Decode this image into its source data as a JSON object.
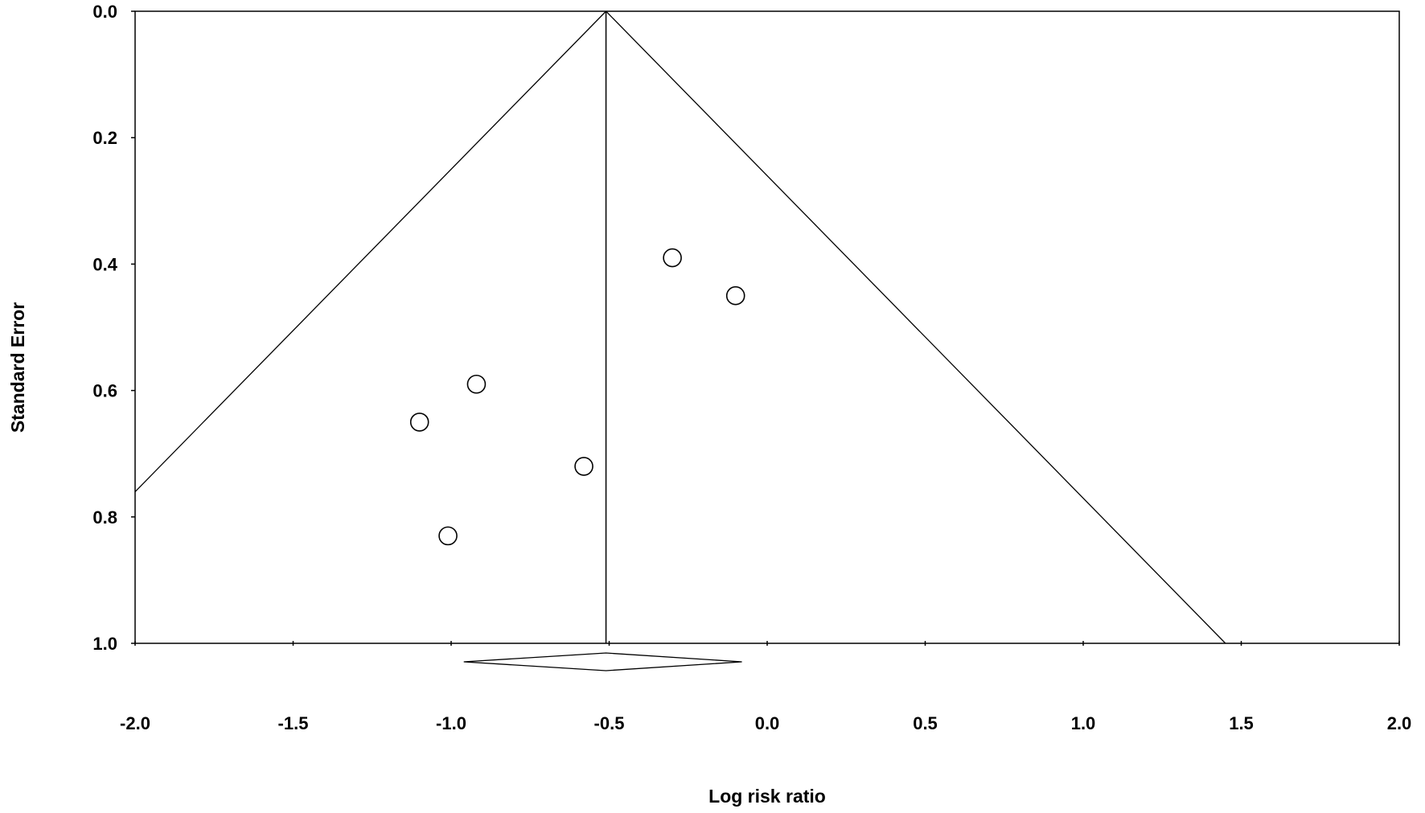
{
  "chart_data": {
    "type": "scatter",
    "subtype": "funnel-plot",
    "title": "",
    "xlabel": "Log risk ratio",
    "ylabel": "Standard Error",
    "xlim": [
      -2.0,
      2.0
    ],
    "ylim": [
      0.0,
      1.0
    ],
    "y_inverted": true,
    "x_ticks": [
      "-2.0",
      "-1.5",
      "-1.0",
      "-0.5",
      "0.0",
      "0.5",
      "1.0",
      "1.5",
      "2.0"
    ],
    "y_ticks": [
      "0.0",
      "0.2",
      "0.4",
      "0.6",
      "0.8",
      "1.0"
    ],
    "grid": false,
    "legend": "none",
    "summary_estimate": -0.51,
    "summary_ci": [
      -0.96,
      -0.08
    ],
    "funnel_multiplier": 1.96,
    "points": [
      {
        "x": -0.3,
        "y": 0.39
      },
      {
        "x": -0.1,
        "y": 0.45
      },
      {
        "x": -0.92,
        "y": 0.59
      },
      {
        "x": -1.1,
        "y": 0.65
      },
      {
        "x": -0.58,
        "y": 0.72
      },
      {
        "x": -1.01,
        "y": 0.83
      }
    ]
  }
}
